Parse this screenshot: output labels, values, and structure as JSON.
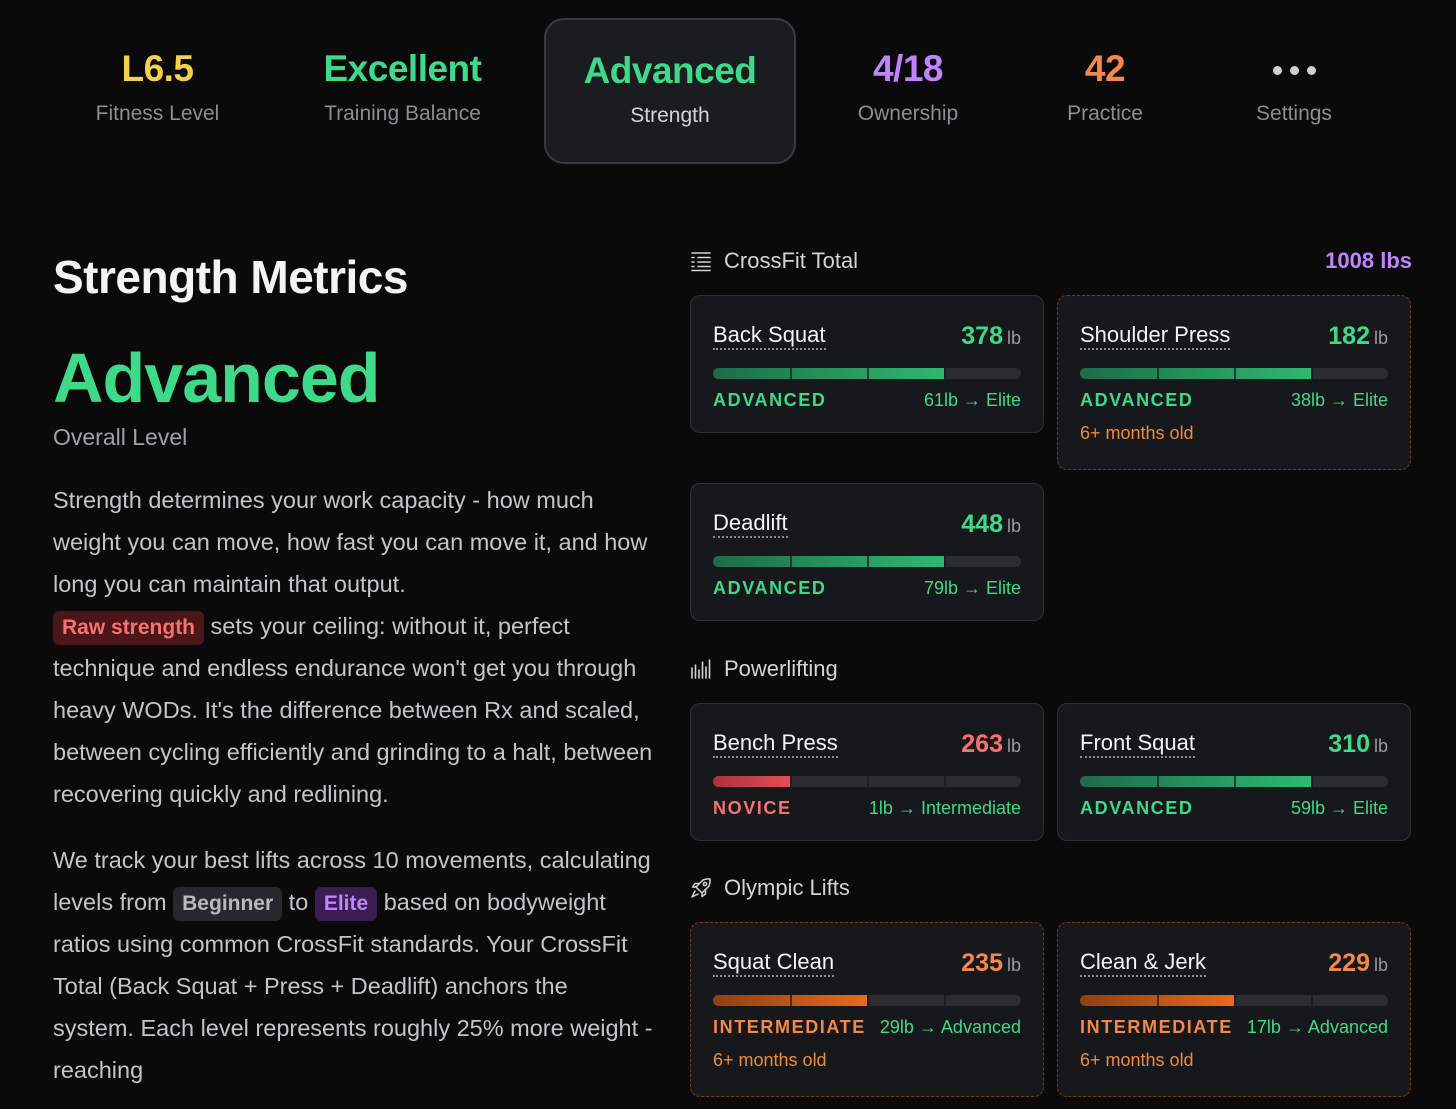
{
  "nav": [
    {
      "value": "L6.5",
      "label": "Fitness Level",
      "color": "#f5d04a"
    },
    {
      "value": "Excellent",
      "label": "Training Balance",
      "color": "#3fd98a"
    },
    {
      "value": "Advanced",
      "label": "Strength",
      "color": "#3fd98a"
    },
    {
      "value": "4/18",
      "label": "Ownership",
      "color": "#c084fc"
    },
    {
      "value": "42",
      "label": "Practice",
      "color": "#f2894a"
    },
    {
      "value": "",
      "label": "Settings",
      "color": "#cfcfd4"
    }
  ],
  "left": {
    "title": "Strength Metrics",
    "level": "Advanced",
    "level_label": "Overall Level",
    "p1_a": "Strength determines your work capacity - how much weight you can move, how fast you can move it, and how long you can maintain that output.",
    "p1_chip": "Raw strength",
    "p1_b": " sets your ceiling: without it, perfect technique and endless endurance won't get you through heavy WODs. It's the difference between Rx and scaled, between cycling efficiently and grinding to a halt, between recovering quickly and redlining.",
    "p2_a": "We track your best lifts across 10 movements, calculating levels from ",
    "p2_chip1": "Beginner",
    "p2_b": " to ",
    "p2_chip2": "Elite",
    "p2_c": " based on bodyweight ratios using common CrossFit standards. Your CrossFit Total (Back Squat + Press + Deadlift) anchors the system. Each level represents roughly 25% more weight - reaching"
  },
  "sections": {
    "crossfit": {
      "title": "CrossFit Total",
      "total": "1008 lbs"
    },
    "powerlifting": {
      "title": "Powerlifting"
    },
    "olympic": {
      "title": "Olympic Lifts"
    }
  },
  "lifts": {
    "back_squat": {
      "name": "Back Squat",
      "weight": "378",
      "unit": "lb",
      "level": "ADVANCED",
      "next": "61lb → Elite",
      "progress": 0.75
    },
    "shoulder_press": {
      "name": "Shoulder Press",
      "weight": "182",
      "unit": "lb",
      "level": "ADVANCED",
      "next": "38lb → Elite",
      "progress": 0.75,
      "age": "6+ months old"
    },
    "deadlift": {
      "name": "Deadlift",
      "weight": "448",
      "unit": "lb",
      "level": "ADVANCED",
      "next": "79lb → Elite",
      "progress": 0.75
    },
    "bench_press": {
      "name": "Bench Press",
      "weight": "263",
      "unit": "lb",
      "level": "NOVICE",
      "next": "1lb → Intermediate",
      "progress": 0.25
    },
    "front_squat": {
      "name": "Front Squat",
      "weight": "310",
      "unit": "lb",
      "level": "ADVANCED",
      "next": "59lb → Elite",
      "progress": 0.75
    },
    "squat_clean": {
      "name": "Squat Clean",
      "weight": "235",
      "unit": "lb",
      "level": "INTERMEDIATE",
      "next": "29lb → Advanced",
      "progress": 0.5,
      "age": "6+ months old"
    },
    "clean_jerk": {
      "name": "Clean & Jerk",
      "weight": "229",
      "unit": "lb",
      "level": "INTERMEDIATE",
      "next": "17lb → Advanced",
      "progress": 0.5,
      "age": "6+ months old"
    }
  }
}
